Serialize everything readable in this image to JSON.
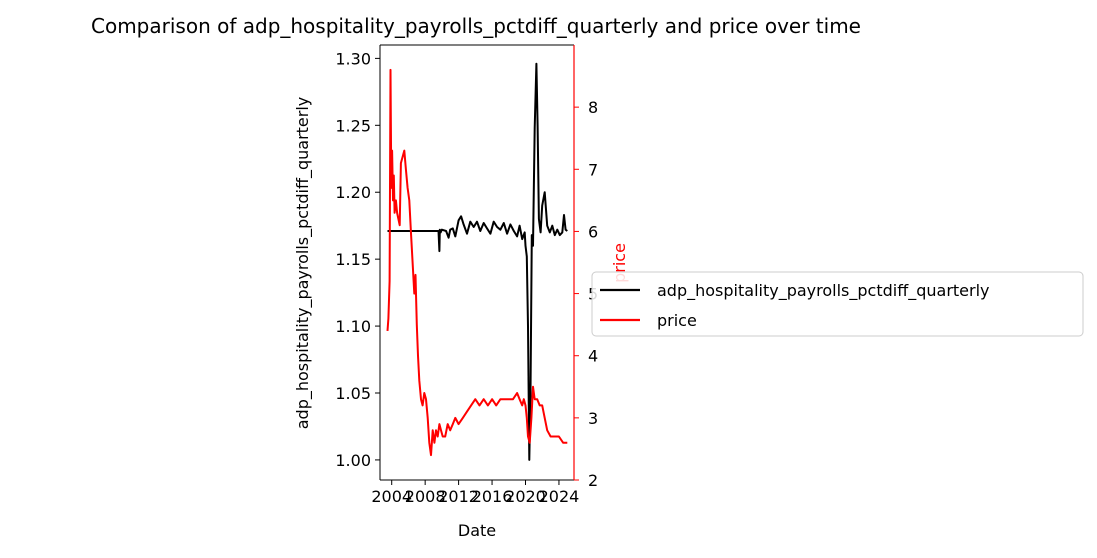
{
  "chart_data": {
    "type": "line",
    "title": "Comparison of adp_hospitality_payrolls_pctdiff_quarterly and price over time",
    "xlabel": "Date",
    "ylabel_left": "adp_hospitality_payrolls_pctdiff_quarterly",
    "ylabel_right": "price",
    "x_ticks": [
      "2004",
      "2008",
      "2012",
      "2016",
      "2020",
      "2024"
    ],
    "xlim": [
      2002.6,
      2025.8
    ],
    "y_left_ticks": [
      "1.00",
      "1.05",
      "1.10",
      "1.15",
      "1.20",
      "1.25",
      "1.30"
    ],
    "y_left_lim": [
      0.985,
      1.31
    ],
    "y_right_ticks": [
      "2",
      "3",
      "4",
      "5",
      "6",
      "7",
      "8"
    ],
    "y_right_lim": [
      2.0,
      9.0
    ],
    "grid": false,
    "legend_position": "center-right outside",
    "series": [
      {
        "name": "adp_hospitality_payrolls_pctdiff_quarterly",
        "axis": "left",
        "color": "#000000",
        "x": [
          2003.5,
          2009.6,
          2009.7,
          2009.75,
          2009.85,
          2010.0,
          2010.5,
          2010.8,
          2011.0,
          2011.3,
          2011.6,
          2012.0,
          2012.3,
          2012.6,
          2013.0,
          2013.4,
          2013.8,
          2014.2,
          2014.6,
          2015.0,
          2015.4,
          2015.8,
          2016.2,
          2016.6,
          2017.0,
          2017.4,
          2017.8,
          2018.2,
          2018.6,
          2019.0,
          2019.3,
          2019.6,
          2019.9,
          2020.0,
          2020.15,
          2020.3,
          2020.45,
          2020.6,
          2020.75,
          2020.9,
          2021.1,
          2021.3,
          2021.45,
          2021.6,
          2021.8,
          2022.0,
          2022.3,
          2022.6,
          2022.9,
          2023.2,
          2023.5,
          2023.8,
          2024.1,
          2024.4,
          2024.6,
          2024.8,
          2025.0
        ],
        "values": [
          1.171,
          1.171,
          1.156,
          1.172,
          1.17,
          1.172,
          1.171,
          1.166,
          1.172,
          1.173,
          1.167,
          1.179,
          1.182,
          1.176,
          1.169,
          1.178,
          1.174,
          1.178,
          1.171,
          1.177,
          1.173,
          1.169,
          1.178,
          1.174,
          1.172,
          1.177,
          1.169,
          1.176,
          1.171,
          1.167,
          1.175,
          1.165,
          1.17,
          1.16,
          1.152,
          1.1,
          1.0,
          1.05,
          1.168,
          1.16,
          1.248,
          1.296,
          1.25,
          1.18,
          1.17,
          1.19,
          1.2,
          1.175,
          1.17,
          1.175,
          1.168,
          1.172,
          1.168,
          1.17,
          1.183,
          1.172,
          1.171
        ]
      },
      {
        "name": "price",
        "axis": "right",
        "color": "#ff0000",
        "x": [
          2003.5,
          2003.6,
          2003.75,
          2003.85,
          2003.95,
          2004.05,
          2004.15,
          2004.25,
          2004.35,
          2004.5,
          2004.65,
          2004.8,
          2004.95,
          2005.1,
          2005.3,
          2005.5,
          2005.7,
          2005.9,
          2006.1,
          2006.3,
          2006.5,
          2006.7,
          2006.85,
          2007.0,
          2007.15,
          2007.3,
          2007.5,
          2007.7,
          2007.9,
          2008.1,
          2008.3,
          2008.5,
          2008.7,
          2008.9,
          2009.1,
          2009.3,
          2009.5,
          2009.7,
          2009.9,
          2010.1,
          2010.4,
          2010.7,
          2011.0,
          2011.3,
          2011.6,
          2012.0,
          2012.5,
          2013.0,
          2013.5,
          2014.0,
          2014.5,
          2015.0,
          2015.5,
          2016.0,
          2016.5,
          2017.0,
          2017.5,
          2018.0,
          2018.5,
          2019.0,
          2019.3,
          2019.6,
          2019.8,
          2020.0,
          2020.15,
          2020.3,
          2020.5,
          2020.7,
          2020.9,
          2021.1,
          2021.4,
          2021.7,
          2022.0,
          2022.3,
          2022.6,
          2023.0,
          2023.5,
          2024.0,
          2024.5,
          2024.8,
          2025.0
        ],
        "values": [
          4.4,
          4.6,
          5.2,
          8.6,
          6.7,
          7.3,
          6.5,
          6.9,
          6.3,
          6.5,
          6.3,
          6.2,
          6.1,
          7.1,
          7.2,
          7.3,
          7.0,
          6.7,
          6.5,
          6.0,
          5.5,
          5.0,
          5.3,
          4.5,
          4.0,
          3.6,
          3.3,
          3.2,
          3.4,
          3.3,
          3.0,
          2.6,
          2.4,
          2.8,
          2.6,
          2.8,
          2.7,
          2.9,
          2.8,
          2.7,
          2.7,
          2.9,
          2.8,
          2.9,
          3.0,
          2.9,
          3.0,
          3.1,
          3.2,
          3.3,
          3.2,
          3.3,
          3.2,
          3.3,
          3.2,
          3.3,
          3.3,
          3.3,
          3.3,
          3.4,
          3.3,
          3.2,
          3.3,
          3.2,
          3.0,
          2.7,
          2.6,
          3.0,
          3.5,
          3.3,
          3.3,
          3.2,
          3.2,
          3.0,
          2.8,
          2.7,
          2.7,
          2.7,
          2.6,
          2.6,
          2.6
        ]
      }
    ]
  }
}
